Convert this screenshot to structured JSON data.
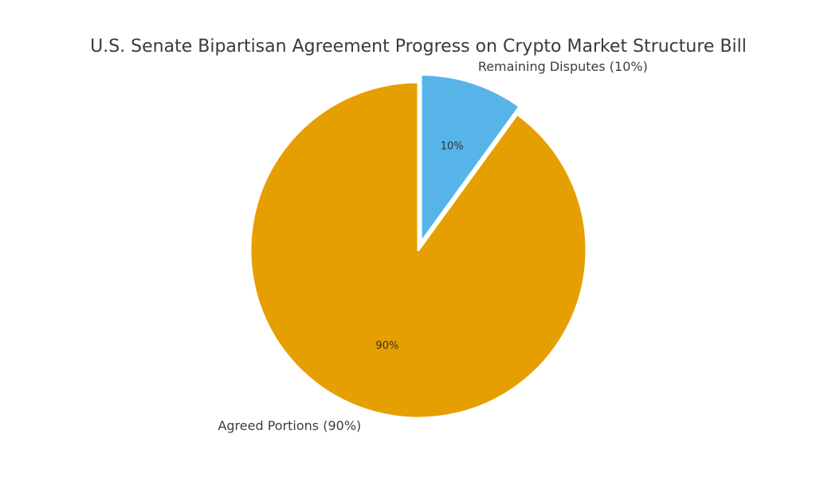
{
  "chart_data": {
    "type": "pie",
    "title": "U.S. Senate Bipartisan Agreement Progress on Crypto Market Structure Bill",
    "slices": [
      {
        "label": "Remaining Disputes (10%)",
        "value": 10,
        "pct_label": "10%",
        "color": "#56B4E9",
        "exploded": true
      },
      {
        "label": "Agreed Portions (90%)",
        "value": 90,
        "pct_label": "90%",
        "color": "#E69F00",
        "exploded": false
      }
    ],
    "start_angle_deg": 90,
    "direction": "clockwise",
    "legend": "none"
  }
}
